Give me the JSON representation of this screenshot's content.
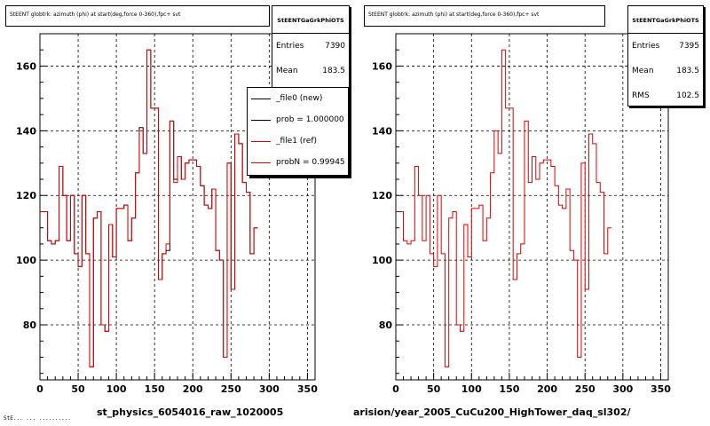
{
  "colors": {
    "new": "#000000",
    "ref": "#dd0000",
    "grid": "#000000"
  },
  "pads": [
    {
      "id": "left",
      "hist_title": "StEENT globtrk: azimuth (phi) at start(deg,force 0-360),fpc+ svt",
      "stats": {
        "name": "StEENTGaGrkPhiOTS",
        "rows": [
          {
            "label": "Entries",
            "value": "7390"
          },
          {
            "label": "Mean",
            "value": "183.5"
          }
        ]
      },
      "xtitle": "st_physics_6054016_raw_1020005",
      "legend": [
        {
          "label": "_file0 (new)",
          "color": "new"
        },
        {
          "label": "prob = 1.000000",
          "color": "new"
        },
        {
          "label": "_file1 (ref)",
          "color": "ref"
        },
        {
          "label": "probN = 0.99945",
          "color": "ref"
        }
      ]
    },
    {
      "id": "right",
      "hist_title": "StEENT globtrk: azimuth (phi) at start(deg,force 0-360),fpc+ svt",
      "stats": {
        "name": "StEENTGaGrkPhiOTS",
        "rows": [
          {
            "label": "Entries",
            "value": "7395"
          },
          {
            "label": "Mean",
            "value": "183.5"
          },
          {
            "label": "RMS",
            "value": "102.5"
          }
        ]
      },
      "xtitle": "arision/year_2005_CuCu200_HighTower_daq_sl302/",
      "legend": []
    }
  ],
  "footer": "StE... ...  ..........",
  "chart_data": [
    {
      "type": "line",
      "title": "StEENT globtrk: azimuth (phi) at start(deg,force 0-360),fpc+ svt",
      "xlabel": "st_physics_6054016_raw_1020005",
      "ylabel": "",
      "xlim": [
        0,
        360
      ],
      "ylim": [
        63,
        170
      ],
      "xticks": [
        0,
        50,
        100,
        150,
        200,
        250,
        300,
        350
      ],
      "yticks": [
        80,
        100,
        120,
        140,
        160
      ],
      "grid": true,
      "bin_width": 5,
      "series": [
        {
          "name": "_file0 (new)",
          "values": [
            115,
            115,
            106,
            105,
            106,
            129,
            120,
            106,
            120,
            102,
            98,
            120,
            102,
            67,
            113,
            115,
            80,
            78,
            111,
            101,
            116,
            116,
            117,
            106,
            113,
            127,
            141,
            133,
            165,
            147,
            147,
            94,
            102,
            103,
            143,
            125,
            132,
            125,
            130,
            131,
            131,
            129,
            123,
            117,
            116,
            122,
            103,
            100,
            70,
            130,
            91,
            139,
            136,
            124,
            121,
            102,
            110
          ]
        },
        {
          "name": "_file1 (ref)",
          "values": [
            115,
            115,
            106,
            105,
            106,
            129,
            120,
            106,
            120,
            102,
            98,
            120,
            102,
            67,
            113,
            115,
            80,
            78,
            111,
            101,
            116,
            116,
            117,
            106,
            113,
            127,
            140,
            133,
            165,
            147,
            147,
            94,
            102,
            105,
            143,
            124,
            132,
            125,
            130,
            131,
            131,
            129,
            123,
            117,
            116,
            122,
            103,
            100,
            70,
            130,
            91,
            139,
            136,
            124,
            121,
            102,
            110
          ]
        }
      ]
    },
    {
      "type": "line",
      "title": "StEENT globtrk: azimuth (phi) at start(deg,force 0-360),fpc+ svt",
      "xlabel": "arision/year_2005_CuCu200_HighTower_daq_sl302/",
      "ylabel": "",
      "xlim": [
        0,
        360
      ],
      "ylim": [
        63,
        170
      ],
      "xticks": [
        0,
        50,
        100,
        150,
        200,
        250,
        300,
        350
      ],
      "yticks": [
        80,
        100,
        120,
        140,
        160
      ],
      "grid": true,
      "bin_width": 5,
      "series": [
        {
          "name": "_file1 (ref)",
          "values": [
            115,
            115,
            106,
            105,
            106,
            129,
            120,
            106,
            120,
            102,
            98,
            120,
            102,
            67,
            113,
            115,
            80,
            78,
            111,
            101,
            116,
            116,
            117,
            106,
            113,
            127,
            140,
            133,
            165,
            147,
            147,
            94,
            102,
            105,
            143,
            124,
            132,
            125,
            130,
            131,
            131,
            129,
            123,
            117,
            116,
            122,
            103,
            100,
            70,
            130,
            91,
            139,
            136,
            124,
            121,
            102,
            110
          ]
        }
      ]
    }
  ]
}
